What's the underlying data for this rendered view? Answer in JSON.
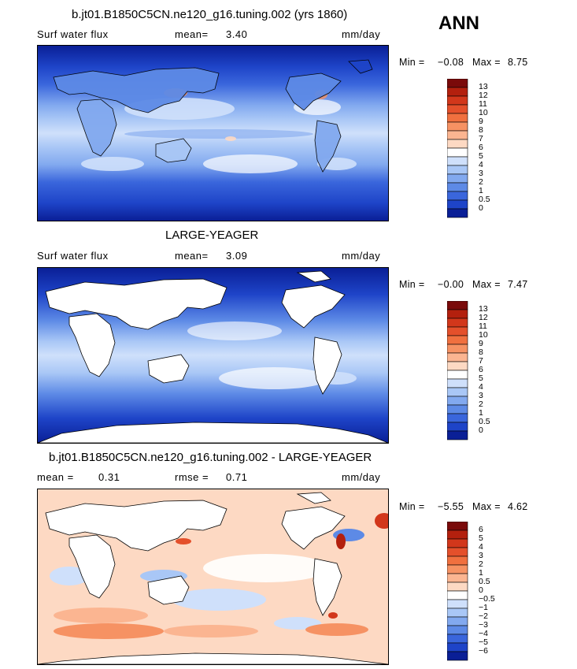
{
  "season": "ANN",
  "panels": [
    {
      "title": "b.jt01.B1850C5CN.ne120_g16.tuning.002 (yrs 1860)",
      "left_label": "Surf water flux",
      "stat1_label": "mean=",
      "stat1_value": "3.40",
      "stat2_label": "",
      "stat2_value": "",
      "units": "mm/day",
      "min_label": "Min =",
      "min_value": "−0.08",
      "max_label": "Max =",
      "max_value": "8.75"
    },
    {
      "title": "LARGE-YEAGER",
      "left_label": "Surf water flux",
      "stat1_label": "mean=",
      "stat1_value": "3.09",
      "stat2_label": "",
      "stat2_value": "",
      "units": "mm/day",
      "min_label": "Min =",
      "min_value": "−0.00",
      "max_label": "Max =",
      "max_value": "7.47"
    },
    {
      "title": "b.jt01.B1850C5CN.ne120_g16.tuning.002 - LARGE-YEAGER",
      "left_label": "",
      "stat1_label": "mean =",
      "stat1_value": "0.31",
      "stat2_label": "rmse =",
      "stat2_value": "0.71",
      "units": "mm/day",
      "min_label": "Min =",
      "min_value": "−5.55",
      "max_label": "Max =",
      "max_value": "4.62"
    }
  ],
  "colorbars": {
    "abs": {
      "labels": [
        "13",
        "12",
        "11",
        "10",
        "9",
        "8",
        "7",
        "6",
        "5",
        "4",
        "3",
        "2",
        "1",
        "0.5",
        "0"
      ],
      "colors": [
        "#7a0a0a",
        "#b3200e",
        "#d2371b",
        "#e4502b",
        "#f0703f",
        "#f69263",
        "#fbb591",
        "#fdd9c3",
        "#ffffff",
        "#cfe0fb",
        "#a9c7f6",
        "#82a9ef",
        "#5d8ae6",
        "#3a66dc",
        "#1e44c8",
        "#0a1f96"
      ]
    },
    "diff": {
      "labels": [
        "6",
        "5",
        "4",
        "3",
        "2",
        "1",
        "0.5",
        "0",
        "−0.5",
        "−1",
        "−2",
        "−3",
        "−4",
        "−5",
        "−6"
      ],
      "colors": [
        "#7a0a0a",
        "#b3200e",
        "#d2371b",
        "#e4502b",
        "#f0703f",
        "#f69263",
        "#fbb591",
        "#fdd9c3",
        "#ffffff",
        "#cfe0fb",
        "#a9c7f6",
        "#82a9ef",
        "#5d8ae6",
        "#3a66dc",
        "#1e44c8",
        "#0a1f96"
      ]
    }
  },
  "chart_data": [
    {
      "type": "heatmap",
      "title": "b.jt01.B1850C5CN.ne120_g16.tuning.002 (yrs 1860)",
      "variable": "Surf water flux",
      "units": "mm/day",
      "mean": 3.4,
      "min": -0.08,
      "max": 8.75,
      "levels": [
        0,
        0.5,
        1,
        2,
        3,
        4,
        5,
        6,
        7,
        8,
        9,
        10,
        11,
        12,
        13
      ],
      "domain": "global map, ocean and land filled"
    },
    {
      "type": "heatmap",
      "title": "LARGE-YEAGER",
      "variable": "Surf water flux",
      "units": "mm/day",
      "mean": 3.09,
      "min": -0.0,
      "max": 7.47,
      "levels": [
        0,
        0.5,
        1,
        2,
        3,
        4,
        5,
        6,
        7,
        8,
        9,
        10,
        11,
        12,
        13
      ],
      "domain": "global map, ocean only (land masked white)"
    },
    {
      "type": "heatmap",
      "title": "b.jt01.B1850C5CN.ne120_g16.tuning.002 - LARGE-YEAGER",
      "units": "mm/day",
      "mean": 0.31,
      "rmse": 0.71,
      "min": -5.55,
      "max": 4.62,
      "levels": [
        -6,
        -5,
        -4,
        -3,
        -2,
        -1,
        -0.5,
        0,
        0.5,
        1,
        2,
        3,
        4,
        5,
        6
      ],
      "domain": "global map, ocean only (land masked white)"
    }
  ]
}
